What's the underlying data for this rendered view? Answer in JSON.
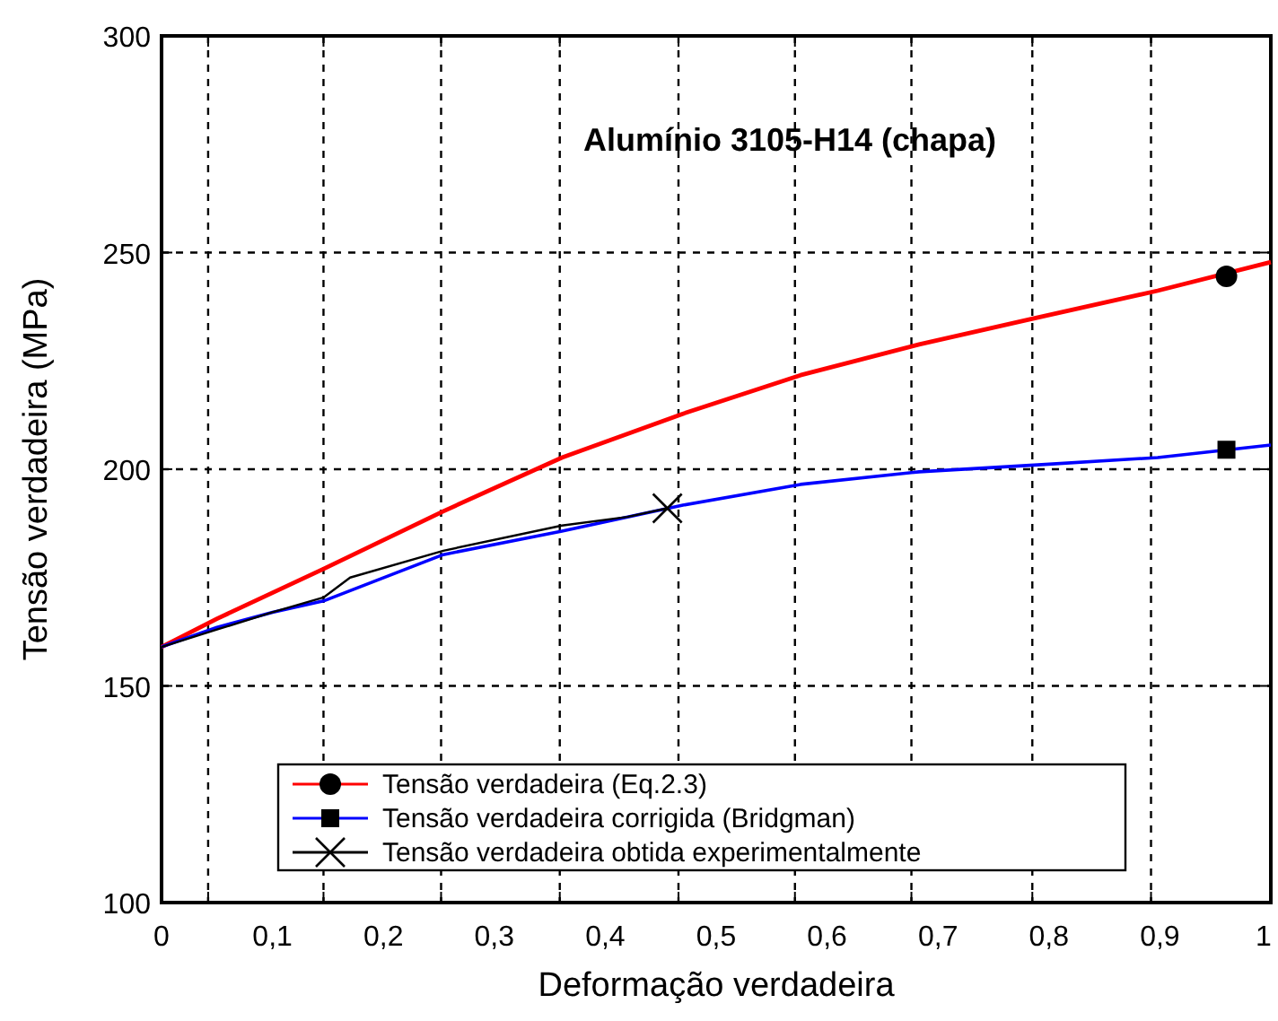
{
  "chart_data": {
    "type": "line",
    "title": "Alumínio 3105-H14 (chapa)",
    "xlabel": "Deformação verdadeira",
    "ylabel": "Tensão verdadeira (MPa)",
    "xlim": [
      0,
      1
    ],
    "ylim": [
      100,
      300
    ],
    "xticks": [
      0,
      {
        "value": 0.042,
        "label": null
      },
      {
        "value": 0.1,
        "label": "0,1"
      },
      {
        "value": 0.146,
        "label": null
      },
      {
        "value": 0.2,
        "label": "0,2"
      },
      {
        "value": 0.252,
        "label": null
      },
      {
        "value": 0.3,
        "label": "0,3"
      },
      {
        "value": 0.359,
        "label": null
      },
      {
        "value": 0.4,
        "label": "0,4"
      },
      {
        "value": 0.466,
        "label": null
      },
      {
        "value": 0.5,
        "label": "0,5"
      },
      {
        "value": 0.571,
        "label": null
      },
      {
        "value": 0.6,
        "label": "0,6"
      },
      {
        "value": 0.676,
        "label": null
      },
      {
        "value": 0.7,
        "label": "0,7"
      },
      {
        "value": 0.785,
        "label": null
      },
      {
        "value": 0.8,
        "label": "0,8"
      },
      {
        "value": 0.892,
        "label": null
      },
      {
        "value": 0.9,
        "label": "0,9"
      },
      1
    ],
    "yticks": [
      100,
      150,
      200,
      250,
      300
    ],
    "grid": true,
    "legend": "bottom",
    "line_style": "solid",
    "series": [
      {
        "name": "Tensão verdadeira (Eq.2.3)",
        "color": "#ff0000",
        "x": [
          0,
          0.05,
          0.146,
          0.254,
          0.361,
          0.47,
          0.576,
          0.683,
          0.79,
          0.898,
          1
        ],
        "values": [
          159,
          165.5,
          177,
          190.3,
          202.7,
          212.8,
          221.7,
          228.8,
          235,
          241.2,
          247.8
        ]
      },
      {
        "type": "scatter",
        "marker": "circle",
        "color": "#000000",
        "x": [
          0.96
        ],
        "values": [
          244.5
        ]
      },
      {
        "name": "Tensão verdadeira corrigida (Bridgman)",
        "color": "#0000ff",
        "x": [
          0,
          0.05,
          0.1,
          0.146,
          0.254,
          0.361,
          0.47,
          0.576,
          0.683,
          0.79,
          0.898,
          1
        ],
        "values": [
          159,
          163.5,
          167,
          169.6,
          180.3,
          185.7,
          191.7,
          196.5,
          199.4,
          201,
          202.7,
          205.6
        ]
      },
      {
        "type": "scatter",
        "marker": "square",
        "color": "#000000",
        "x": [
          0.96
        ],
        "values": [
          204.5
        ]
      },
      {
        "name": "Tensão verdadeira obtida experimentalmente",
        "color": "#000000",
        "x": [
          0,
          0.05,
          0.1,
          0.146,
          0.17,
          0.254,
          0.361,
          0.42,
          0.456
        ],
        "values": [
          159,
          163,
          167,
          170.4,
          175,
          181.2,
          187,
          189,
          191
        ]
      },
      {
        "type": "scatter",
        "marker": "cross",
        "color": "#000000",
        "x": [
          0.456
        ],
        "values": [
          191
        ]
      }
    ]
  }
}
